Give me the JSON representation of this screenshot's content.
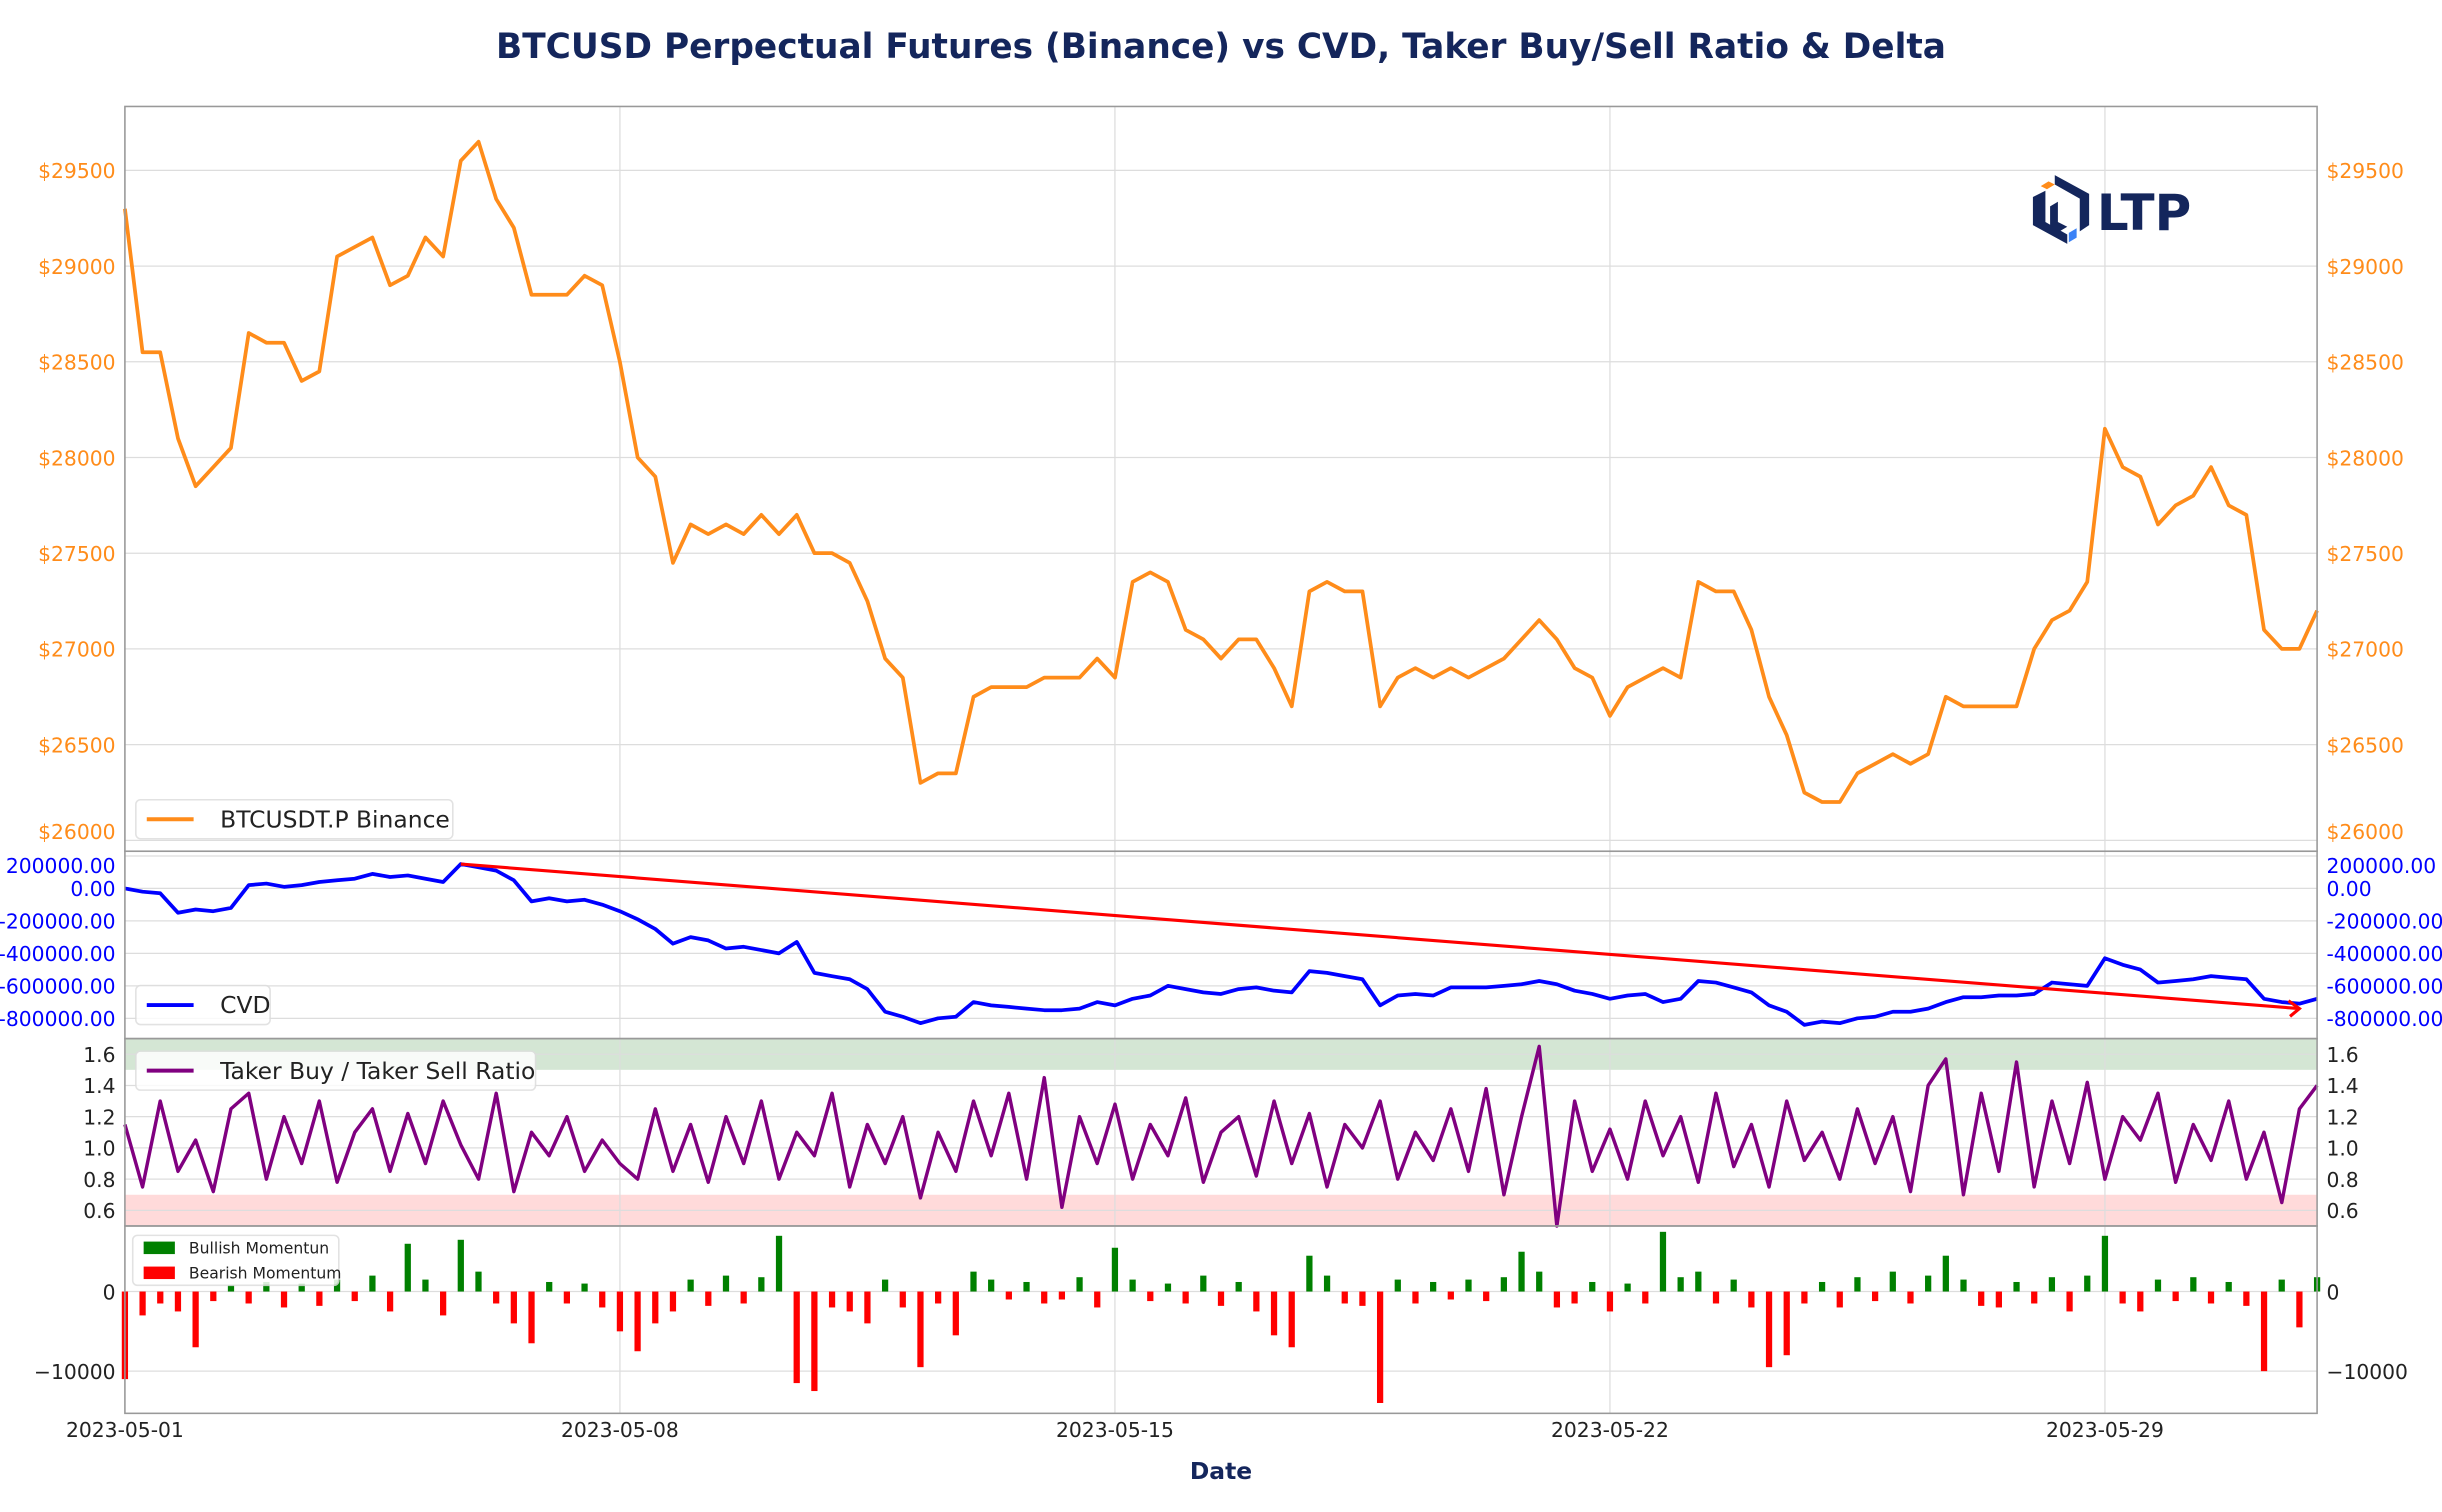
{
  "title": "BTCUSD Perpectual Futures (Binance) vs CVD, Taker Buy/Sell Ratio & Delta",
  "logo_text": "LTP",
  "colors": {
    "title": "#14265c",
    "price": "#ff8c1a",
    "cvd": "#0000ff",
    "trend": "#ff0000",
    "ratio": "#800080",
    "bull": "#008000",
    "bear": "#ff0000",
    "band_high": "#cfe3cf",
    "band_low": "#ffd6d6"
  },
  "chart_data": [
    {
      "type": "line",
      "panel": "price",
      "series": [
        {
          "name": "BTCUSDT.P Binance"
        }
      ],
      "yticks": [
        29500,
        29000,
        28500,
        28000,
        27500,
        27000,
        26500,
        26000
      ],
      "ytick_labels": [
        "$29500",
        "$29000",
        "$28500",
        "$28000",
        "$27500",
        "$27000",
        "$26500",
        "$26000"
      ],
      "ylim": [
        25943,
        29834
      ],
      "grid": true,
      "legend": "bottom-left",
      "values": [
        29300,
        28550,
        28550,
        28100,
        27850,
        27950,
        28050,
        28650,
        28600,
        28600,
        28400,
        28450,
        29050,
        29100,
        29150,
        28900,
        28950,
        29150,
        29050,
        29550,
        29650,
        29350,
        29200,
        28850,
        28850,
        28850,
        28950,
        28900,
        28500,
        28000,
        27900,
        27450,
        27650,
        27600,
        27650,
        27600,
        27700,
        27600,
        27700,
        27500,
        27500,
        27450,
        27250,
        26950,
        26850,
        26300,
        26350,
        26350,
        26750,
        26800,
        26800,
        26800,
        26850,
        26850,
        26850,
        26950,
        26850,
        27350,
        27400,
        27350,
        27100,
        27050,
        26950,
        27050,
        27050,
        26900,
        26700,
        27300,
        27350,
        27300,
        27300,
        26700,
        26850,
        26900,
        26850,
        26900,
        26850,
        26900,
        26950,
        27050,
        27150,
        27050,
        26900,
        26850,
        26650,
        26800,
        26850,
        26900,
        26850,
        27350,
        27300,
        27300,
        27100,
        26750,
        26550,
        26250,
        26200,
        26200,
        26350,
        26400,
        26450,
        26400,
        26450,
        26750,
        26700,
        26700,
        26700,
        26700,
        27000,
        27150,
        27200,
        27350,
        28150,
        27950,
        27900,
        27650,
        27750,
        27800,
        27950,
        27750,
        27700,
        27100,
        27000,
        27000,
        27200
      ]
    },
    {
      "type": "line",
      "panel": "cvd",
      "series": [
        {
          "name": "CVD"
        }
      ],
      "yticks": [
        200000,
        0,
        -200000,
        -400000,
        -600000,
        -800000
      ],
      "ytick_labels": [
        "200000.00",
        "0.00",
        "-200000.00",
        "-400000.00",
        "-600000.00",
        "-800000.00"
      ],
      "ylim": [
        -925000,
        229000
      ],
      "grid": true,
      "legend": "bottom-left",
      "trendline": {
        "start": [
          "2023-05-05T18",
          150000
        ],
        "end": [
          "2023-05-31T18",
          -740000
        ]
      },
      "values": [
        0,
        -20000,
        -30000,
        -150000,
        -130000,
        -140000,
        -120000,
        20000,
        30000,
        10000,
        20000,
        40000,
        50000,
        60000,
        90000,
        70000,
        80000,
        60000,
        40000,
        150000,
        130000,
        110000,
        50000,
        -80000,
        -60000,
        -80000,
        -70000,
        -100000,
        -140000,
        -190000,
        -250000,
        -340000,
        -300000,
        -320000,
        -370000,
        -360000,
        -380000,
        -400000,
        -330000,
        -520000,
        -540000,
        -560000,
        -620000,
        -760000,
        -790000,
        -830000,
        -800000,
        -790000,
        -700000,
        -720000,
        -730000,
        -740000,
        -750000,
        -750000,
        -740000,
        -700000,
        -720000,
        -680000,
        -660000,
        -600000,
        -620000,
        -640000,
        -650000,
        -620000,
        -610000,
        -630000,
        -640000,
        -510000,
        -520000,
        -540000,
        -560000,
        -720000,
        -660000,
        -650000,
        -660000,
        -610000,
        -610000,
        -610000,
        -600000,
        -590000,
        -570000,
        -590000,
        -630000,
        -650000,
        -680000,
        -660000,
        -650000,
        -700000,
        -680000,
        -570000,
        -580000,
        -610000,
        -640000,
        -720000,
        -760000,
        -840000,
        -820000,
        -830000,
        -800000,
        -790000,
        -760000,
        -760000,
        -740000,
        -700000,
        -670000,
        -670000,
        -660000,
        -660000,
        -650000,
        -580000,
        -590000,
        -600000,
        -430000,
        -470000,
        -500000,
        -580000,
        -570000,
        -560000,
        -540000,
        -550000,
        -560000,
        -680000,
        -700000,
        -710000,
        -680000
      ]
    },
    {
      "type": "line",
      "panel": "ratio",
      "series": [
        {
          "name": "Taker Buy / Taker Sell Ratio"
        }
      ],
      "yticks": [
        1.6,
        1.4,
        1.2,
        1.0,
        0.8,
        0.6
      ],
      "ytick_labels": [
        "1.6",
        "1.4",
        "1.2",
        "1.0",
        "0.8",
        "0.6"
      ],
      "ylim": [
        0.5,
        1.7
      ],
      "bands": [
        {
          "from": 1.5,
          "to": 1.7,
          "color": "band_high"
        },
        {
          "from": 0.5,
          "to": 0.7,
          "color": "band_low"
        }
      ],
      "grid": true,
      "legend": "top-left",
      "values": [
        1.15,
        0.75,
        1.3,
        0.85,
        1.05,
        0.72,
        1.25,
        1.35,
        0.8,
        1.2,
        0.9,
        1.3,
        0.78,
        1.1,
        1.25,
        0.85,
        1.22,
        0.9,
        1.3,
        1.02,
        0.8,
        1.35,
        0.72,
        1.1,
        0.95,
        1.2,
        0.85,
        1.05,
        0.9,
        0.8,
        1.25,
        0.85,
        1.15,
        0.78,
        1.2,
        0.9,
        1.3,
        0.8,
        1.1,
        0.95,
        1.35,
        0.75,
        1.15,
        0.9,
        1.2,
        0.68,
        1.1,
        0.85,
        1.3,
        0.95,
        1.35,
        0.8,
        1.45,
        0.62,
        1.2,
        0.9,
        1.28,
        0.8,
        1.15,
        0.95,
        1.32,
        0.78,
        1.1,
        1.2,
        0.82,
        1.3,
        0.9,
        1.22,
        0.75,
        1.15,
        1.0,
        1.3,
        0.8,
        1.1,
        0.92,
        1.25,
        0.85,
        1.38,
        0.7,
        1.2,
        1.65,
        0.5,
        1.3,
        0.85,
        1.12,
        0.8,
        1.3,
        0.95,
        1.2,
        0.78,
        1.35,
        0.88,
        1.15,
        0.75,
        1.3,
        0.92,
        1.1,
        0.8,
        1.25,
        0.9,
        1.2,
        0.72,
        1.4,
        1.57,
        0.7,
        1.35,
        0.85,
        1.55,
        0.75,
        1.3,
        0.9,
        1.42,
        0.8,
        1.2,
        1.05,
        1.35,
        0.78,
        1.15,
        0.92,
        1.3,
        0.8,
        1.1,
        0.65,
        1.25,
        1.4
      ]
    },
    {
      "type": "bar",
      "panel": "delta",
      "series": [
        {
          "name": "Bullish Momentun",
          "sign": "positive"
        },
        {
          "name": "Bearish Momentum",
          "sign": "negative"
        }
      ],
      "yticks": [
        0,
        -10000
      ],
      "ytick_labels": [
        "0",
        "−10000"
      ],
      "ylim": [
        -15300,
        8235
      ],
      "grid": true,
      "legend": "top-left",
      "values": [
        -11000,
        -3000,
        -1500,
        -2500,
        -7000,
        -1200,
        800,
        -1500,
        1200,
        -2000,
        1000,
        -1800,
        1500,
        -1200,
        2000,
        -2500,
        6000,
        1500,
        -3000,
        6500,
        2500,
        -1500,
        -4000,
        -6500,
        1200,
        -1500,
        1000,
        -2000,
        -5000,
        -7500,
        -4000,
        -2500,
        1500,
        -1800,
        2000,
        -1500,
        1800,
        7000,
        -11500,
        -12500,
        -2000,
        -2500,
        -4000,
        1500,
        -2000,
        -9500,
        -1500,
        -5500,
        2500,
        1500,
        -1000,
        1200,
        -1500,
        -1000,
        1800,
        -2000,
        5500,
        1500,
        -1200,
        1000,
        -1500,
        2000,
        -1800,
        1200,
        -2500,
        -5500,
        -7000,
        4500,
        2000,
        -1500,
        -1800,
        -14000,
        1500,
        -1500,
        1200,
        -1000,
        1500,
        -1200,
        1800,
        5000,
        2500,
        -2000,
        -1500,
        1200,
        -2500,
        1000,
        -1500,
        7500,
        1800,
        2500,
        -1500,
        1500,
        -2000,
        -9500,
        -8000,
        -1500,
        1200,
        -2000,
        1800,
        -1200,
        2500,
        -1500,
        2000,
        4500,
        1500,
        -1800,
        -2000,
        1200,
        -1500,
        1800,
        -2500,
        2000,
        7000,
        -1500,
        -2500,
        1500,
        -1200,
        1800,
        -1500,
        1200,
        -1800,
        -10000,
        1500,
        -4500,
        1800
      ],
      "xlabel": "Date",
      "xticks": [
        "2023-05-01T00",
        "2023-05-08T00",
        "2023-05-15T00",
        "2023-05-22T00",
        "2023-05-29T00"
      ],
      "xtick_labels": [
        "2023-05-01",
        "2023-05-08",
        "2023-05-15",
        "2023-05-22",
        "2023-05-29"
      ],
      "xlim": [
        "2023-05-01T00",
        "2023-06-01T00"
      ]
    }
  ],
  "x": [
    "2023-05-01T00",
    "2023-05-01T06",
    "2023-05-01T12",
    "2023-05-01T18",
    "2023-05-02T00",
    "2023-05-02T06",
    "2023-05-02T12",
    "2023-05-02T18",
    "2023-05-03T00",
    "2023-05-03T06",
    "2023-05-03T12",
    "2023-05-03T18",
    "2023-05-04T00",
    "2023-05-04T06",
    "2023-05-04T12",
    "2023-05-04T18",
    "2023-05-05T00",
    "2023-05-05T06",
    "2023-05-05T12",
    "2023-05-05T18",
    "2023-05-06T00",
    "2023-05-06T06",
    "2023-05-06T12",
    "2023-05-06T18",
    "2023-05-07T00",
    "2023-05-07T06",
    "2023-05-07T12",
    "2023-05-07T18",
    "2023-05-08T00",
    "2023-05-08T06",
    "2023-05-08T12",
    "2023-05-08T18",
    "2023-05-09T00",
    "2023-05-09T06",
    "2023-05-09T12",
    "2023-05-09T18",
    "2023-05-10T00",
    "2023-05-10T06",
    "2023-05-10T12",
    "2023-05-10T18",
    "2023-05-11T00",
    "2023-05-11T06",
    "2023-05-11T12",
    "2023-05-11T18",
    "2023-05-12T00",
    "2023-05-12T06",
    "2023-05-12T12",
    "2023-05-12T18",
    "2023-05-13T00",
    "2023-05-13T06",
    "2023-05-13T12",
    "2023-05-13T18",
    "2023-05-14T00",
    "2023-05-14T06",
    "2023-05-14T12",
    "2023-05-14T18",
    "2023-05-15T00",
    "2023-05-15T06",
    "2023-05-15T12",
    "2023-05-15T18",
    "2023-05-16T00",
    "2023-05-16T06",
    "2023-05-16T12",
    "2023-05-16T18",
    "2023-05-17T00",
    "2023-05-17T06",
    "2023-05-17T12",
    "2023-05-17T18",
    "2023-05-18T00",
    "2023-05-18T06",
    "2023-05-18T12",
    "2023-05-18T18",
    "2023-05-19T00",
    "2023-05-19T06",
    "2023-05-19T12",
    "2023-05-19T18",
    "2023-05-20T00",
    "2023-05-20T06",
    "2023-05-20T12",
    "2023-05-20T18",
    "2023-05-21T00",
    "2023-05-21T06",
    "2023-05-21T12",
    "2023-05-21T18",
    "2023-05-22T00",
    "2023-05-22T06",
    "2023-05-22T12",
    "2023-05-22T18",
    "2023-05-23T00",
    "2023-05-23T06",
    "2023-05-23T12",
    "2023-05-23T18",
    "2023-05-24T00",
    "2023-05-24T06",
    "2023-05-24T12",
    "2023-05-24T18",
    "2023-05-25T00",
    "2023-05-25T06",
    "2023-05-25T12",
    "2023-05-25T18",
    "2023-05-26T00",
    "2023-05-26T06",
    "2023-05-26T12",
    "2023-05-26T18",
    "2023-05-27T00",
    "2023-05-27T06",
    "2023-05-27T12",
    "2023-05-27T18",
    "2023-05-28T00",
    "2023-05-28T06",
    "2023-05-28T12",
    "2023-05-28T18",
    "2023-05-29T00",
    "2023-05-29T06",
    "2023-05-29T12",
    "2023-05-29T18",
    "2023-05-30T00",
    "2023-05-30T06",
    "2023-05-30T12",
    "2023-05-30T18",
    "2023-05-31T00",
    "2023-05-31T06",
    "2023-05-31T12",
    "2023-05-31T18",
    "2023-06-01T00"
  ]
}
